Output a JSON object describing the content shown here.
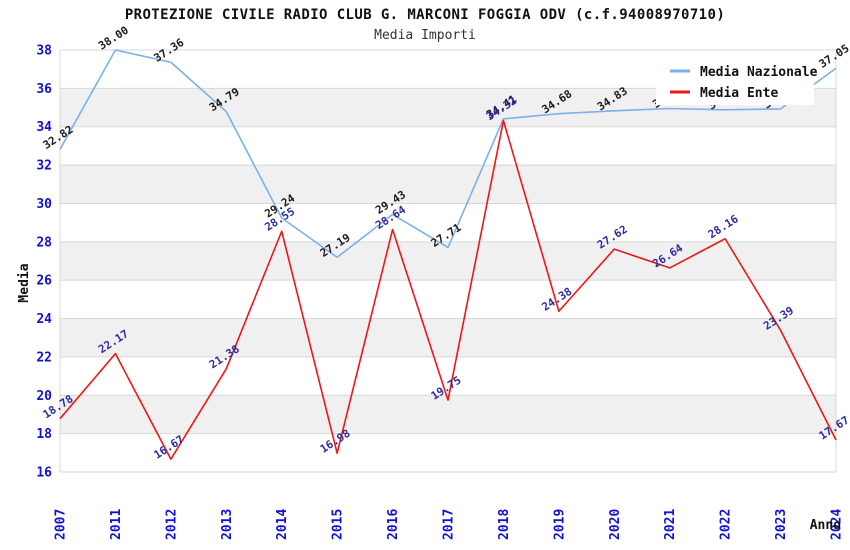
{
  "chart_data": {
    "type": "line",
    "title": "PROTEZIONE CIVILE RADIO CLUB G. MARCONI FOGGIA ODV (c.f.94008970710)",
    "subtitle": "Media Importi",
    "xlabel": "Anno",
    "ylabel": "Media",
    "categories": [
      "2007",
      "2011",
      "2012",
      "2013",
      "2014",
      "2015",
      "2016",
      "2017",
      "2018",
      "2019",
      "2020",
      "2021",
      "2022",
      "2023",
      "2024"
    ],
    "ylim": [
      16,
      38
    ],
    "ytick_step": 2,
    "yticks": [
      16,
      18,
      20,
      22,
      24,
      26,
      28,
      30,
      32,
      34,
      36,
      38
    ],
    "series": [
      {
        "name": "Media Nazionale",
        "color": "#7cb0e8",
        "label_color": "#1c1c1c",
        "values": [
          32.82,
          38.0,
          37.36,
          34.79,
          29.24,
          27.19,
          29.43,
          27.71,
          34.41,
          34.68,
          34.83,
          34.95,
          34.88,
          34.93,
          37.05
        ]
      },
      {
        "name": "Media Ente",
        "color": "#ee1717",
        "label_color": "#2e2e9e",
        "values": [
          18.78,
          22.17,
          16.67,
          21.38,
          28.55,
          16.98,
          28.64,
          19.75,
          34.32,
          24.38,
          27.62,
          26.64,
          28.16,
          23.39,
          17.67
        ]
      }
    ],
    "legend_position": "top-right",
    "grid": {
      "bands": true,
      "band_color": "#f0f0f0",
      "line_color": "#d8d8d8"
    },
    "axis_tick_color": "#1212d6"
  }
}
